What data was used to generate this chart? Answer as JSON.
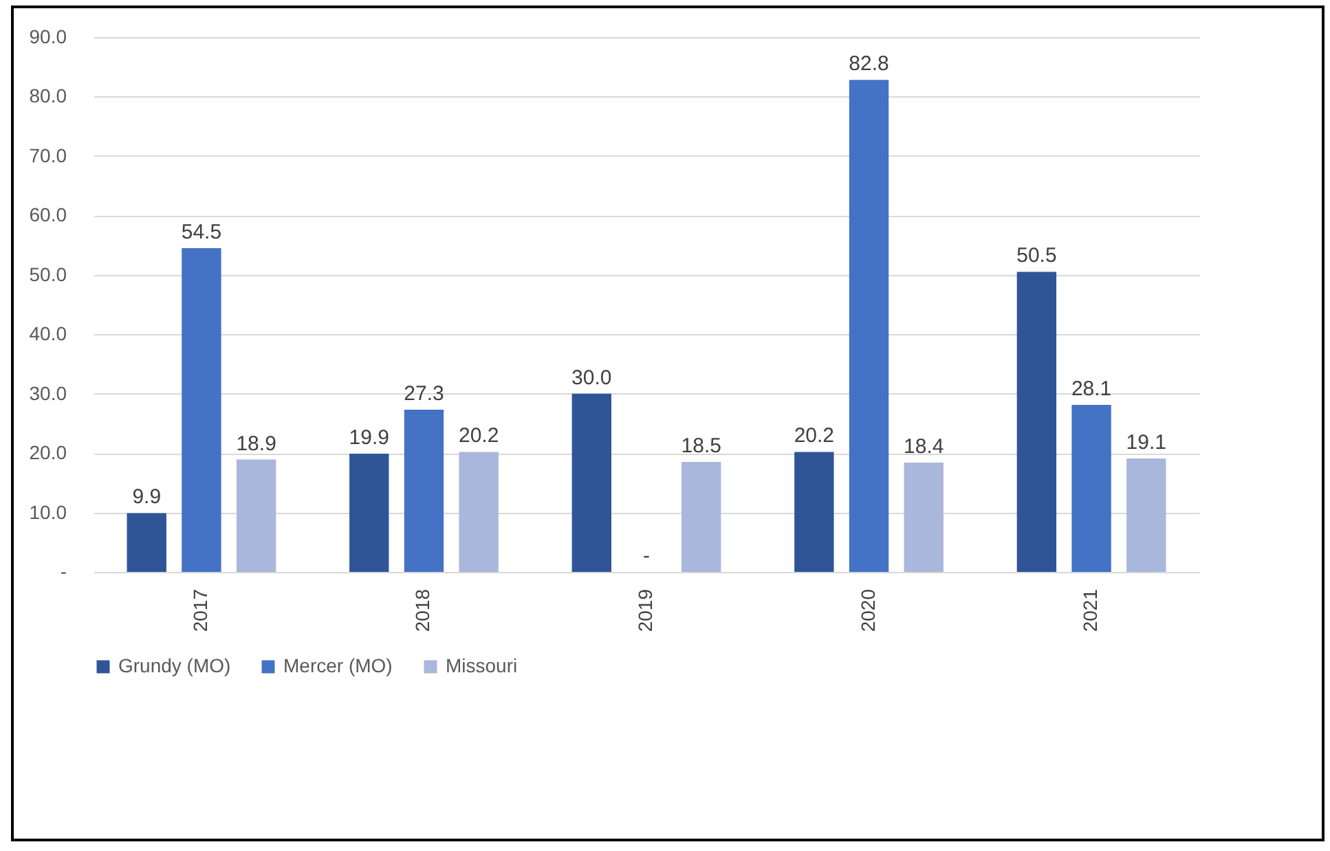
{
  "chart_data": {
    "type": "bar",
    "categories": [
      "2017",
      "2018",
      "2019",
      "2020",
      "2021"
    ],
    "series": [
      {
        "name": "Grundy (MO)",
        "color": "#2f5597",
        "values": [
          9.9,
          19.9,
          30.0,
          20.2,
          50.5
        ],
        "value_labels": [
          "9.9",
          "19.9",
          "30.0",
          "20.2",
          "50.5"
        ]
      },
      {
        "name": "Mercer (MO)",
        "color": "#4472c4",
        "values": [
          54.5,
          27.3,
          0,
          82.8,
          28.1
        ],
        "value_labels": [
          "54.5",
          "27.3",
          "-",
          "82.8",
          "28.1"
        ]
      },
      {
        "name": "Missouri",
        "color": "#a9b7dc",
        "values": [
          18.9,
          20.2,
          18.5,
          18.4,
          19.1
        ],
        "value_labels": [
          "18.9",
          "20.2",
          "18.5",
          "18.4",
          "19.1"
        ]
      }
    ],
    "ylim": [
      0,
      90
    ],
    "yticks": [
      {
        "value": 0,
        "label": "-"
      },
      {
        "value": 10,
        "label": "10.0"
      },
      {
        "value": 20,
        "label": "20.0"
      },
      {
        "value": 30,
        "label": "30.0"
      },
      {
        "value": 40,
        "label": "40.0"
      },
      {
        "value": 50,
        "label": "50.0"
      },
      {
        "value": 60,
        "label": "60.0"
      },
      {
        "value": 70,
        "label": "70.0"
      },
      {
        "value": 80,
        "label": "80.0"
      },
      {
        "value": 90,
        "label": "90.0"
      }
    ],
    "grid": "y",
    "legend": "bottom"
  }
}
